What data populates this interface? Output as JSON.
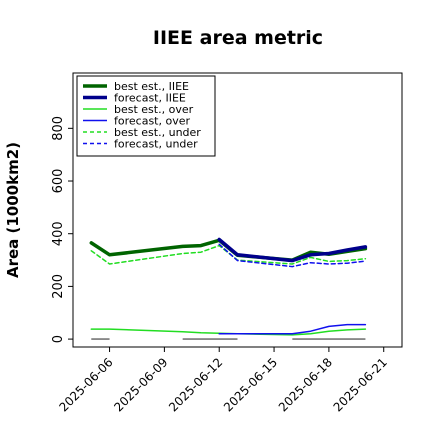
{
  "chart_data": {
    "type": "line",
    "title": "IIEE area metric",
    "xlabel": "",
    "ylabel": "Area (1000km2)",
    "x_ticks": [
      {
        "date": "2025-06-06",
        "label": "2025-06-06",
        "color": "#000000"
      },
      {
        "date": "2025-06-09",
        "label": "2025-06-09",
        "color": "#000000"
      },
      {
        "date": "2025-06-12",
        "label": "2025-06-12",
        "color": "#2e8b2e"
      },
      {
        "date": "2025-06-15",
        "label": "2025-06-15",
        "color": "#000000"
      },
      {
        "date": "2025-06-18",
        "label": "2025-06-18",
        "color": "#000000"
      },
      {
        "date": "2025-06-21",
        "label": "2025-06-21",
        "color": "#000000"
      }
    ],
    "xlim": [
      "2025-06-04",
      "2025-06-22"
    ],
    "y_ticks": [
      0,
      200,
      400,
      600,
      800
    ],
    "ylim": [
      -30,
      1010
    ],
    "grid": false,
    "legend_position": "top-left",
    "series": [
      {
        "name": "best est., IIEE",
        "color": "#006400",
        "style": "solid",
        "width": 3.5,
        "x": [
          "2025-06-05",
          "2025-06-06",
          "2025-06-10",
          "2025-06-11",
          "2025-06-12",
          "2025-06-13",
          "2025-06-16",
          "2025-06-17",
          "2025-06-18",
          "2025-06-19",
          "2025-06-20"
        ],
        "y": [
          365,
          320,
          352,
          355,
          375,
          318,
          300,
          330,
          322,
          333,
          343
        ]
      },
      {
        "name": "forecast, IIEE",
        "color": "#00008b",
        "style": "solid",
        "width": 3.5,
        "x": [
          "2025-06-12",
          "2025-06-13",
          "2025-06-16",
          "2025-06-17",
          "2025-06-18",
          "2025-06-19",
          "2025-06-20"
        ],
        "y": [
          378,
          320,
          298,
          320,
          325,
          338,
          350
        ]
      },
      {
        "name": "best est., over",
        "color": "#22dd22",
        "style": "solid",
        "width": 1.5,
        "x": [
          "2025-06-05",
          "2025-06-06",
          "2025-06-10",
          "2025-06-11",
          "2025-06-12",
          "2025-06-13",
          "2025-06-16",
          "2025-06-17",
          "2025-06-18",
          "2025-06-19",
          "2025-06-20"
        ],
        "y": [
          38,
          38,
          28,
          24,
          22,
          20,
          16,
          20,
          30,
          35,
          38
        ]
      },
      {
        "name": "forecast, over",
        "color": "#1010ee",
        "style": "solid",
        "width": 1.5,
        "x": [
          "2025-06-12",
          "2025-06-13",
          "2025-06-16",
          "2025-06-17",
          "2025-06-18",
          "2025-06-19",
          "2025-06-20"
        ],
        "y": [
          20,
          20,
          20,
          30,
          48,
          55,
          55
        ]
      },
      {
        "name": "best est., under",
        "color": "#22dd22",
        "style": "dashed",
        "width": 1.5,
        "x": [
          "2025-06-05",
          "2025-06-06",
          "2025-06-10",
          "2025-06-11",
          "2025-06-12",
          "2025-06-13",
          "2025-06-16",
          "2025-06-17",
          "2025-06-18",
          "2025-06-19",
          "2025-06-20"
        ],
        "y": [
          335,
          285,
          325,
          330,
          355,
          300,
          285,
          310,
          295,
          298,
          305
        ]
      },
      {
        "name": "forecast, under",
        "color": "#1010ee",
        "style": "dashed",
        "width": 1.5,
        "x": [
          "2025-06-12",
          "2025-06-13",
          "2025-06-16",
          "2025-06-17",
          "2025-06-18",
          "2025-06-19",
          "2025-06-20"
        ],
        "y": [
          360,
          298,
          275,
          290,
          285,
          288,
          296
        ]
      }
    ],
    "baseline_segments": [
      {
        "color": "#777777",
        "y": 0,
        "x": [
          [
            "2025-06-05",
            "2025-06-06"
          ],
          [
            "2025-06-10",
            "2025-06-13"
          ],
          [
            "2025-06-16",
            "2025-06-20"
          ]
        ]
      }
    ]
  }
}
